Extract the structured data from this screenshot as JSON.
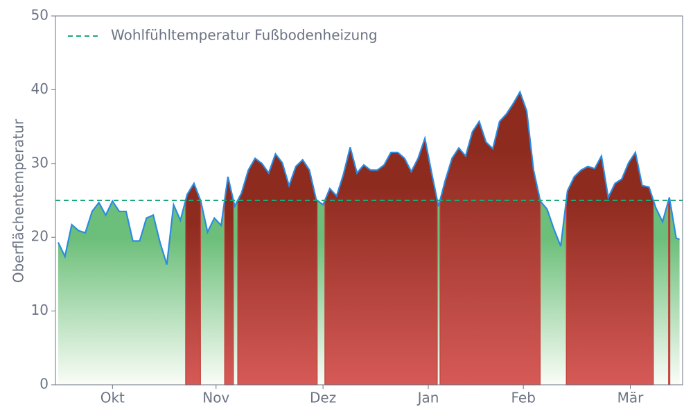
{
  "chart_data": {
    "type": "line",
    "ylabel": "Oberflächentemperatur",
    "x": [
      0,
      2,
      4,
      6,
      8,
      10,
      12,
      14,
      16,
      18,
      20,
      22,
      24,
      26,
      28,
      30,
      32,
      34,
      36,
      38,
      40,
      42,
      44,
      46,
      48,
      50,
      52,
      54,
      56,
      58,
      60,
      62,
      64,
      66,
      68,
      70,
      72,
      74,
      76,
      78,
      80,
      82,
      84,
      86,
      88,
      90,
      92,
      94,
      96,
      98,
      100,
      102,
      104,
      106,
      108,
      110,
      112,
      114,
      116,
      118,
      120,
      122,
      124,
      126,
      128,
      130,
      132,
      134,
      136,
      138,
      140,
      142,
      144,
      146,
      148,
      150,
      152,
      154,
      156,
      158,
      160,
      162,
      164,
      166,
      168,
      170,
      172,
      174,
      176,
      178,
      180,
      182,
      183
    ],
    "series": [
      {
        "name": "Oberflächentemperatur",
        "color": "#2a8be0",
        "values": [
          19.3,
          17.4,
          21.7,
          20.9,
          20.6,
          23.5,
          24.7,
          23.0,
          24.9,
          23.5,
          23.5,
          19.5,
          19.5,
          22.6,
          23.0,
          19.3,
          16.3,
          24.4,
          22.3,
          25.8,
          27.3,
          24.9,
          20.7,
          22.6,
          21.6,
          28.2,
          24.2,
          26.0,
          29.1,
          30.7,
          30.0,
          28.7,
          31.3,
          30.1,
          27.0,
          29.6,
          30.5,
          29.1,
          25.1,
          24.4,
          26.6,
          25.6,
          28.5,
          32.2,
          28.7,
          29.8,
          29.1,
          29.1,
          29.8,
          31.5,
          31.5,
          30.7,
          28.9,
          30.7,
          33.4,
          28.7,
          24.2,
          27.7,
          30.7,
          32.1,
          31.0,
          34.3,
          35.7,
          32.9,
          32.0,
          35.7,
          36.7,
          38.1,
          39.7,
          37.1,
          29.1,
          24.9,
          23.8,
          21.1,
          18.8,
          26.3,
          28.2,
          29.1,
          29.6,
          29.3,
          31.0,
          25.4,
          27.3,
          27.9,
          30.1,
          31.5,
          27.0,
          26.8,
          24.0,
          22.1,
          25.4,
          19.9,
          19.7
        ]
      }
    ],
    "reference_line": {
      "name": "Wohlfühltemperatur Fußbodenheizung",
      "value": 25,
      "color": "#1aaa78"
    },
    "above_color": "#b5403a",
    "below_color": "#6cbf7a",
    "xlim": [
      -0.8,
      183.9
    ],
    "xticks": [
      {
        "value": 16,
        "label": "Okt"
      },
      {
        "value": 46.5,
        "label": "Nov"
      },
      {
        "value": 78,
        "label": "Dez"
      },
      {
        "value": 109,
        "label": "Jan"
      },
      {
        "value": 137,
        "label": "Feb"
      },
      {
        "value": 168.5,
        "label": "Mär"
      }
    ],
    "ylim": [
      0,
      50
    ],
    "yticks": [
      0,
      10,
      20,
      30,
      40,
      50
    ],
    "grid": false,
    "legend": "upper left"
  }
}
